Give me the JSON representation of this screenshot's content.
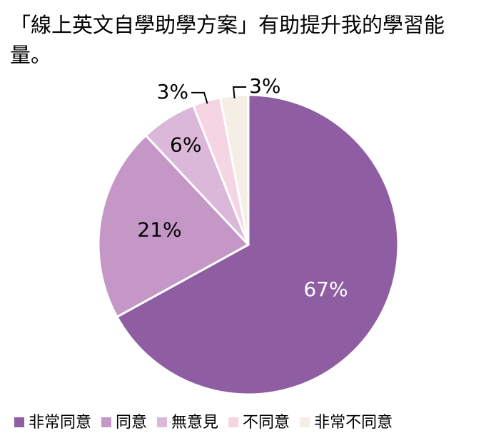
{
  "chart_data": {
    "type": "pie",
    "title": "「線上英文自學助學方案」有助提升我的學習能量。",
    "categories": [
      "非常同意",
      "同意",
      "無意見",
      "不同意",
      "非常不同意"
    ],
    "values": [
      67,
      21,
      6,
      3,
      3
    ],
    "value_labels": [
      "67%",
      "21%",
      "6%",
      "3%",
      "3%"
    ],
    "colors": [
      "#8e5da2",
      "#c497c6",
      "#dbb8d9",
      "#f6d5e3",
      "#f4eee4"
    ]
  }
}
